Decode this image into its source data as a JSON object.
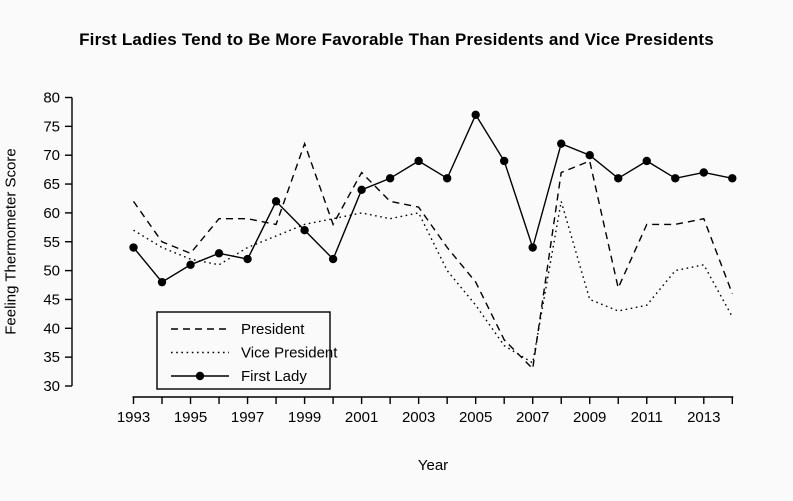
{
  "figure": {
    "title": "First Ladies Tend to Be More Favorable Than Presidents and Vice Presidents",
    "x_axis_title": "Year",
    "y_axis_title": "Feeling Thermometer Score"
  },
  "legend": {
    "entries": [
      {
        "label": "President",
        "style": "dashed"
      },
      {
        "label": "Vice President",
        "style": "dotted"
      },
      {
        "label": "First Lady",
        "style": "solid-point"
      }
    ]
  },
  "chart_data": {
    "type": "line",
    "title": "First Ladies Tend to Be More Favorable Than Presidents and Vice Presidents",
    "xlabel": "Year",
    "ylabel": "Feeling Thermometer Score",
    "x": [
      1993,
      1994,
      1995,
      1996,
      1997,
      1998,
      1999,
      2000,
      2001,
      2002,
      2003,
      2004,
      2005,
      2006,
      2007,
      2008,
      2009,
      2010,
      2011,
      2012,
      2013,
      2014
    ],
    "x_tick_labels": [
      "1993",
      "1995",
      "1997",
      "1999",
      "2001",
      "2003",
      "2005",
      "2007",
      "2009",
      "2011",
      "2013"
    ],
    "x_labeled_years": [
      1993,
      1995,
      1997,
      1999,
      2001,
      2003,
      2005,
      2007,
      2009,
      2011,
      2013
    ],
    "y_ticks": [
      30,
      35,
      40,
      45,
      50,
      55,
      60,
      65,
      70,
      75,
      80
    ],
    "ylim": [
      30,
      80
    ],
    "xlim": [
      1993,
      2014
    ],
    "grid": "off",
    "legend_position": "lower-left-inside",
    "line_color": "#000000",
    "series": [
      {
        "name": "President",
        "style": "dashed",
        "values": [
          62,
          55,
          53,
          59,
          59,
          58,
          72,
          58,
          67,
          62,
          61,
          54,
          48,
          38,
          33,
          67,
          69,
          47,
          58,
          58,
          59,
          46
        ]
      },
      {
        "name": "Vice President",
        "style": "dotted",
        "values": [
          57,
          54,
          52,
          51,
          54,
          56,
          58,
          59,
          60,
          59,
          60,
          50,
          44,
          37,
          34,
          62,
          45,
          43,
          44,
          50,
          51,
          42
        ]
      },
      {
        "name": "First Lady",
        "style": "solid-point",
        "values": [
          54,
          48,
          51,
          53,
          52,
          62,
          57,
          52,
          64,
          66,
          69,
          66,
          77,
          69,
          54,
          72,
          70,
          66,
          69,
          66,
          67,
          66
        ]
      }
    ]
  }
}
